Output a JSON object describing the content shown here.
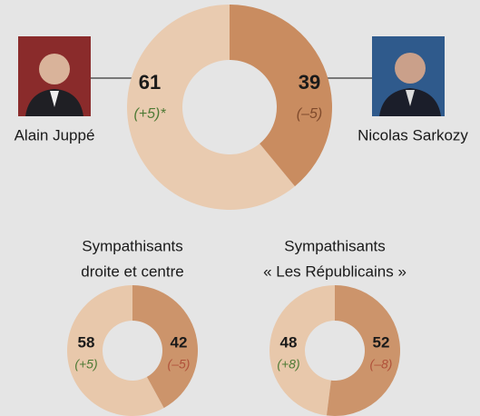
{
  "chart_data": [
    {
      "type": "pie",
      "categories": [
        "Alain Juppé",
        "Nicolas Sarkozy"
      ],
      "values": [
        61,
        39
      ],
      "change_labels": [
        "(+5)*",
        "(–5)"
      ],
      "colors": [
        "#e9cbb0",
        "#c98c60"
      ],
      "label_colors": [
        "#4e7a35",
        "#7f4a2c"
      ]
    },
    {
      "type": "pie",
      "title": [
        "Sympathisants",
        "droite et centre"
      ],
      "values": [
        58,
        42
      ],
      "change_labels": [
        "(+5)",
        "(–5)"
      ],
      "colors": [
        "#e8c8ab",
        "#cc946b"
      ],
      "label_colors": [
        "#4e7a35",
        "#b0513a"
      ]
    },
    {
      "type": "pie",
      "title": [
        "Sympathisants",
        "« Les Républicains »"
      ],
      "values": [
        48,
        52
      ],
      "change_labels": [
        "(+8)",
        "(–8)"
      ],
      "colors": [
        "#e8c8ab",
        "#cc946b"
      ],
      "label_colors": [
        "#4e7a35",
        "#b0513a"
      ]
    }
  ]
}
